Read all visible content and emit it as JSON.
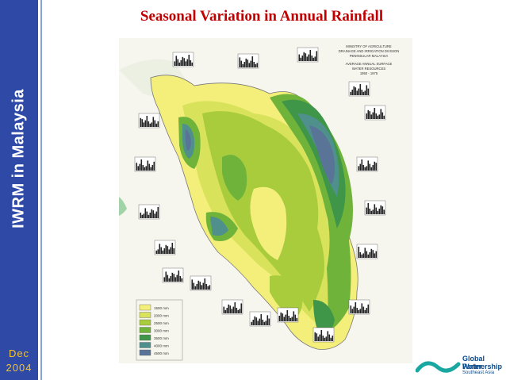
{
  "slide": {
    "title": "Seasonal Variation in Annual Rainfall",
    "sidebar_title": "IWRM in Malaysia",
    "date_month": "Dec",
    "date_year": "2004"
  },
  "map": {
    "header_lines": [
      "MINISTRY OF AGRICULTURE",
      "DRAINAGE AND IRRIGATION DIVISION",
      "PENINSULAR MALAYSIA",
      "AVERAGE ANNUAL SURFACE",
      "WATER RESOURCES",
      "1950 - 1975"
    ],
    "legend_labels": [
      "1500 mm",
      "2000 mm",
      "2500 mm",
      "3000 mm",
      "3500 mm",
      "4000 mm",
      "4500 mm"
    ],
    "legend_colors": [
      "#f3ef7a",
      "#d8e25a",
      "#a9cc3c",
      "#6fb33a",
      "#3f9648",
      "#4f8f8c",
      "#5a7498"
    ]
  },
  "logo": {
    "line1": "Global Water",
    "line2": "Partnership",
    "line3": "Southeast Asia"
  }
}
